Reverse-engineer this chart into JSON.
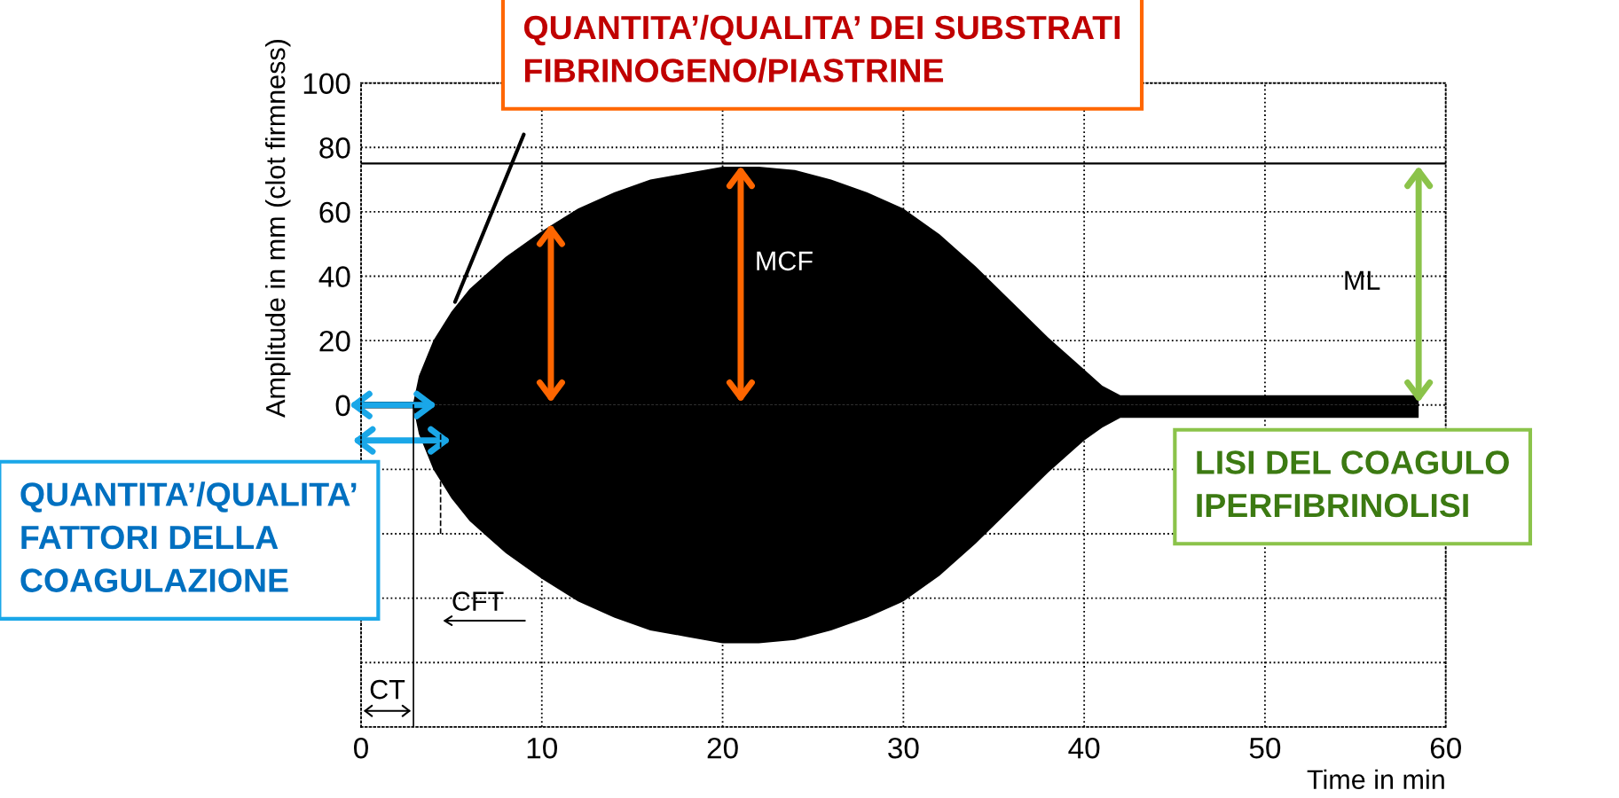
{
  "chart_data": {
    "type": "area",
    "xlabel": "Time in min",
    "ylabel": "Amplitude in mm (clot firmness)",
    "xlim": [
      0,
      60
    ],
    "xticks": [
      0,
      10,
      20,
      30,
      40,
      50,
      60
    ],
    "ylim": [
      -100,
      100
    ],
    "yticks": [
      {
        "value": -100,
        "label": null
      },
      {
        "value": -80,
        "label": null
      },
      {
        "value": -60,
        "label": null
      },
      {
        "value": -40,
        "label": null
      },
      {
        "value": -20,
        "label": null
      },
      0,
      20,
      40,
      60,
      80,
      100
    ],
    "grid": true,
    "series": [
      {
        "color": "#000000",
        "x": [
          0,
          2.9,
          3.2,
          4,
          5,
          6,
          7,
          8,
          10,
          12,
          14,
          16,
          18,
          20,
          22,
          24,
          26,
          28,
          30,
          32,
          34,
          36,
          38,
          40,
          41,
          42,
          45,
          50,
          55,
          58.5
        ],
        "values": [
          1,
          1,
          9,
          20,
          29,
          36,
          41,
          46,
          54,
          61,
          66,
          70,
          72,
          74,
          74,
          73,
          70,
          66,
          61,
          53,
          43,
          32,
          21,
          11,
          6,
          3,
          3,
          3,
          3,
          3
        ]
      },
      {
        "color": "#000000",
        "x": [
          0,
          2.9,
          3.2,
          4,
          5,
          6,
          7,
          8,
          10,
          12,
          14,
          16,
          18,
          20,
          22,
          24,
          26,
          28,
          30,
          32,
          34,
          36,
          38,
          40,
          41,
          42,
          45,
          50,
          55,
          58.5
        ],
        "values": [
          -1,
          -1,
          -9,
          -20,
          -29,
          -36,
          -41,
          -46,
          -54,
          -61,
          -66,
          -70,
          -72,
          -74,
          -74,
          -73,
          -70,
          -66,
          -61,
          -53,
          -43,
          -32,
          -21,
          -11,
          -7,
          -4,
          -4,
          -4,
          -4,
          -4
        ]
      },
      {
        "type": "line",
        "color": "#000000",
        "x": [
          5.2,
          9.0
        ],
        "values": [
          32,
          84
        ]
      }
    ],
    "ref_lines": [
      {
        "axis": "y",
        "value": 75,
        "color": "#000000",
        "line_style": "solid"
      },
      {
        "axis": "x",
        "value": 2.9,
        "label": "CT",
        "color": "#000000",
        "line_style": "solid"
      },
      {
        "axis": "x",
        "value": 4.4,
        "label": "CFT",
        "color": "#000000",
        "line_style": "dashed"
      }
    ],
    "annotations": [
      "QUANTITA’/QUALITA’ DEI SUBSTRATI\nFIBRINOGENO/PIASTRINE",
      "MCF",
      "ML",
      "LISI DEL COAGULO\nIPERFIBRINOLISI",
      "QUANTITA’/QUALITA’\nFATTORI DELLA\nCOAGULAZIONE"
    ]
  }
}
